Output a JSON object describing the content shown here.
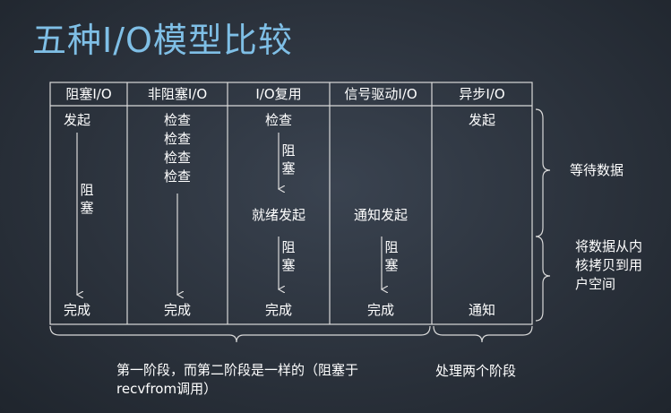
{
  "title": "五种I/O模型比较",
  "columns": [
    {
      "header": "阻塞I/O",
      "start": "发起",
      "block": "阻塞",
      "end": "完成"
    },
    {
      "header": "非阻塞I/O",
      "checks": [
        "检查",
        "检查",
        "检查",
        "检查"
      ],
      "end": "完成"
    },
    {
      "header": "I/O复用",
      "start": "检查",
      "block1": "阻塞",
      "ready": "就绪发起",
      "block2": "阻塞",
      "end": "完成"
    },
    {
      "header": "信号驱动I/O",
      "ready": "通知发起",
      "block": "阻塞",
      "end": "完成"
    },
    {
      "header": "异步I/O",
      "start": "发起",
      "end": "通知"
    }
  ],
  "stages": {
    "wait": "等待数据",
    "copy": "将数据从内核拷贝到用户空间"
  },
  "notes": {
    "left": "第一阶段，而第二阶段是一样的（阻塞于recvfrom调用）",
    "right": "处理两个阶段"
  },
  "colors": {
    "title": "#7fbfe6",
    "line": "#d9d9d9",
    "background": "#2b323c"
  }
}
